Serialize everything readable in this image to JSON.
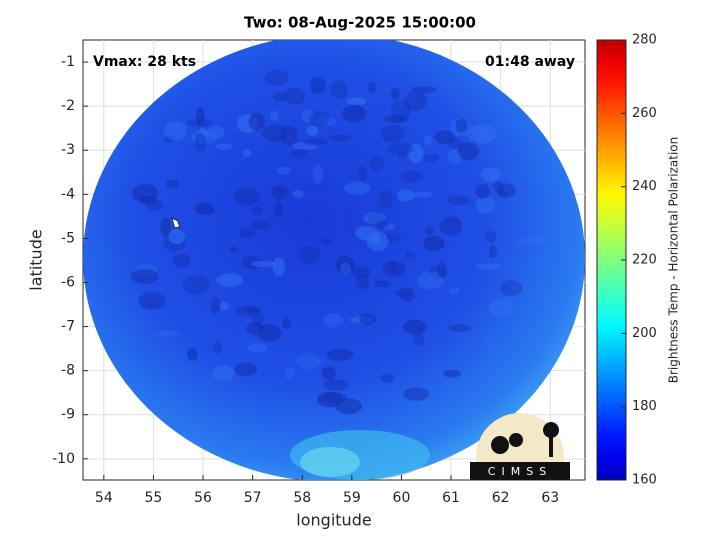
{
  "chart_data": {
    "type": "map",
    "title": "Two: 08-Aug-2025 15:00:00",
    "xlabel": "longitude",
    "ylabel": "latitude",
    "xlim": [
      53.58,
      63.7
    ],
    "ylim": [
      -10.48,
      -0.5
    ],
    "xticks": [
      54,
      55,
      56,
      57,
      58,
      59,
      60,
      61,
      62,
      63
    ],
    "yticks": [
      -1,
      -2,
      -3,
      -4,
      -5,
      -6,
      -7,
      -8,
      -9,
      -10
    ],
    "grid": true,
    "annotations": [
      "Vmax: 28 kts",
      "01:48 away"
    ],
    "storm_center": {
      "x": 55.45,
      "y": -4.65
    },
    "colorbar": {
      "label": "Brightness Temp - Horizontal Polarization",
      "lim": [
        160,
        280
      ],
      "ticks": [
        160,
        180,
        200,
        220,
        240,
        260,
        280
      ],
      "colormap": "jet"
    }
  },
  "logo": "CIMSS"
}
